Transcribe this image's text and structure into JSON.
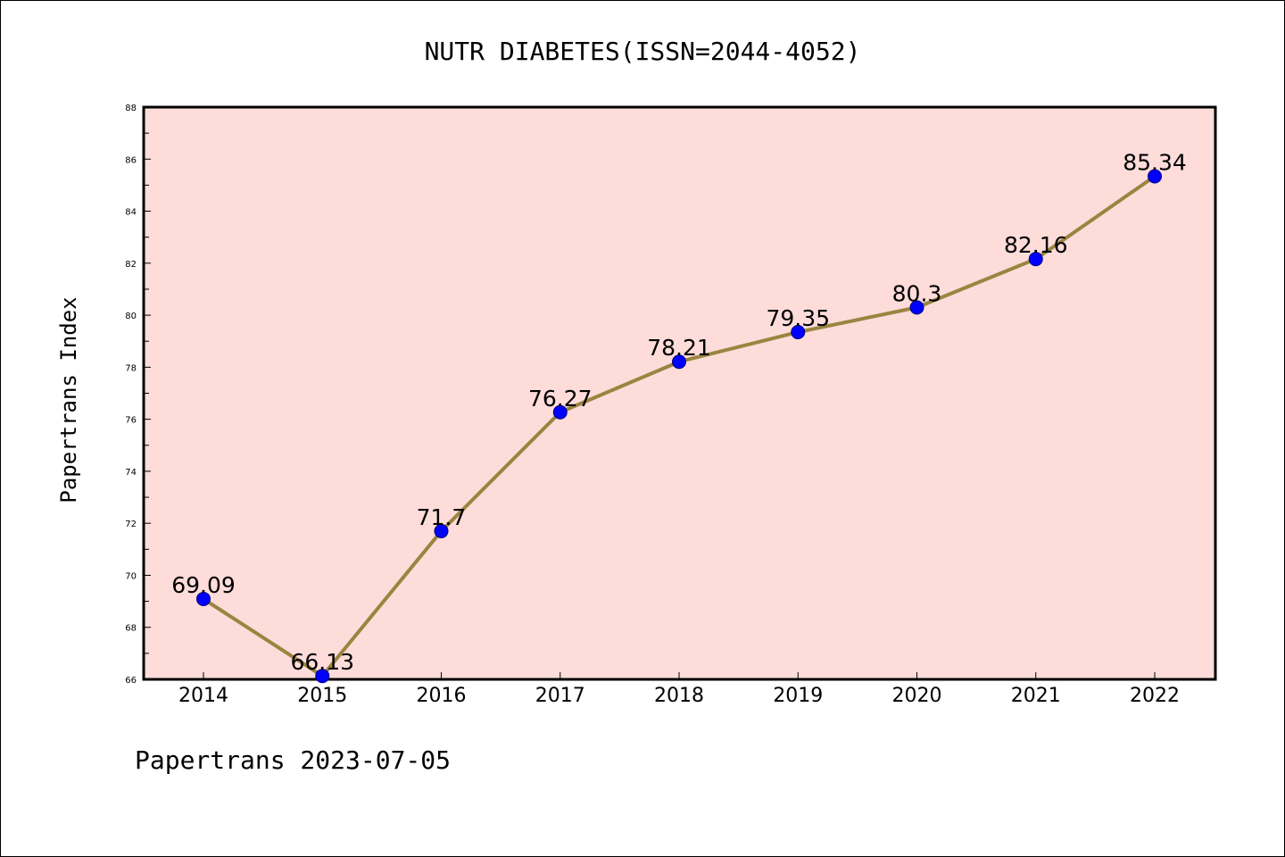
{
  "footer": "Papertrans 2023-07-05",
  "colors": {
    "plot_background": "#fddcda",
    "line": "#9a8540",
    "marker_fill": "#0000ff",
    "marker_edge": "#000080"
  },
  "chart_data": {
    "type": "line",
    "title": "NUTR DIABETES(ISSN=2044-4052)",
    "xlabel": "",
    "ylabel": "Papertrans Index",
    "x": [
      "2014",
      "2015",
      "2016",
      "2017",
      "2018",
      "2019",
      "2020",
      "2021",
      "2022"
    ],
    "series": [
      {
        "values": [
          69.09,
          66.13,
          71.7,
          76.27,
          78.21,
          79.35,
          80.3,
          82.16,
          85.34
        ],
        "labels": [
          "69.09",
          "66.13",
          "71.7",
          "76.27",
          "78.21",
          "79.35",
          "80.3",
          "82.16",
          "85.34"
        ]
      }
    ],
    "ylim": [
      66,
      88
    ],
    "yticks": [
      "66",
      "68",
      "70",
      "72",
      "74",
      "76",
      "78",
      "80",
      "82",
      "84",
      "86",
      "88"
    ],
    "grid": false,
    "legend": "none"
  }
}
